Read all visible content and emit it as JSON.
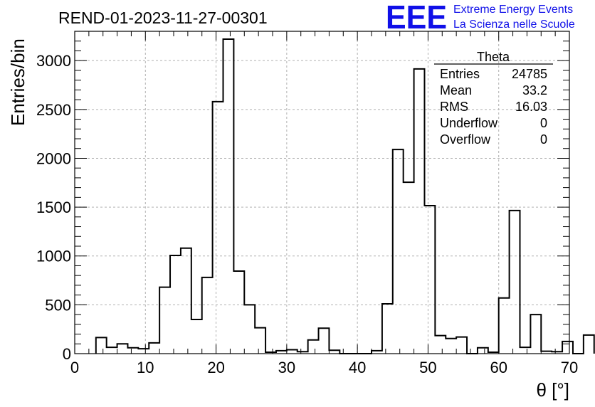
{
  "title": "REND-01-2023-11-27-00301",
  "logo": {
    "letters": "EEE",
    "line1": "Extreme Energy Events",
    "line2": "La Scienza nelle Scuole",
    "color": "#1010e8"
  },
  "stats_box": {
    "title": "Theta",
    "rows": [
      {
        "label": "Entries",
        "value": "24785"
      },
      {
        "label": "Mean",
        "value": "33.2"
      },
      {
        "label": "RMS",
        "value": "16.03"
      },
      {
        "label": "Underflow",
        "value": "0"
      },
      {
        "label": "Overflow",
        "value": "0"
      }
    ]
  },
  "chart_data": {
    "type": "bar",
    "histogram": true,
    "title": "REND-01-2023-11-27-00301",
    "xlabel": "θ [°]",
    "ylabel": "Entries/bin",
    "xlim": [
      0,
      70
    ],
    "ylim": [
      0,
      3300
    ],
    "bin_width": 1.5,
    "x_ticks": [
      0,
      10,
      20,
      30,
      40,
      50,
      60,
      70
    ],
    "y_ticks": [
      0,
      500,
      1000,
      1500,
      2000,
      2500,
      3000
    ],
    "grid": true,
    "grid_style": "dashed",
    "bin_edges_start": 3,
    "values": [
      165,
      65,
      100,
      60,
      50,
      110,
      680,
      1005,
      1080,
      350,
      780,
      2580,
      3220,
      845,
      500,
      265,
      15,
      30,
      40,
      20,
      140,
      260,
      35,
      0,
      0,
      0,
      30,
      510,
      2090,
      1755,
      2915,
      1515,
      185,
      155,
      170,
      0,
      60,
      15,
      570,
      1465,
      65,
      400,
      25,
      20,
      125,
      0,
      190
    ]
  }
}
